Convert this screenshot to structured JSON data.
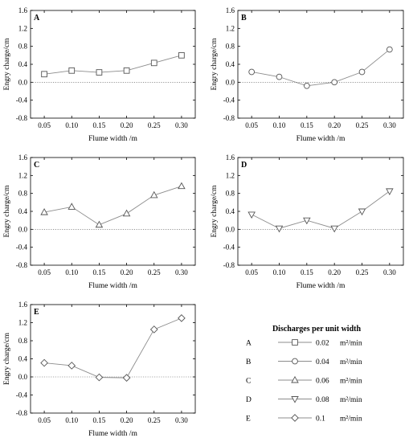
{
  "chart_data": [
    {
      "type": "line",
      "panel": "A",
      "x": [
        0.05,
        0.1,
        0.15,
        0.2,
        0.25,
        0.3
      ],
      "y": [
        0.18,
        0.26,
        0.22,
        0.26,
        0.43,
        0.6
      ],
      "marker": "square",
      "xlabel": "Flume width /m",
      "ylabel": "Engry charge/cm",
      "xticks": [
        "0.05",
        "0.10",
        "0.15",
        "0.20",
        "0.25",
        "0.30"
      ],
      "yticks": [
        "-0.8",
        "-0.4",
        "0.0",
        "0.4",
        "0.8",
        "1.2",
        "1.6"
      ],
      "ylim": [
        -0.8,
        1.6
      ],
      "zero_line": true
    },
    {
      "type": "line",
      "panel": "B",
      "x": [
        0.05,
        0.1,
        0.15,
        0.2,
        0.25,
        0.3
      ],
      "y": [
        0.23,
        0.12,
        -0.08,
        0.0,
        0.23,
        0.73
      ],
      "marker": "circle",
      "xlabel": "Flume width /m",
      "ylabel": "Engry charge/cm",
      "xticks": [
        "0.05",
        "0.10",
        "0.15",
        "0.20",
        "0.25",
        "0.30"
      ],
      "yticks": [
        "-0.8",
        "-0.4",
        "0.0",
        "0.4",
        "0.8",
        "1.2",
        "1.6"
      ],
      "ylim": [
        -0.8,
        1.6
      ],
      "zero_line": true
    },
    {
      "type": "line",
      "panel": "C",
      "x": [
        0.05,
        0.1,
        0.15,
        0.2,
        0.25,
        0.3
      ],
      "y": [
        0.38,
        0.5,
        0.1,
        0.35,
        0.76,
        0.96
      ],
      "marker": "triangle-up",
      "xlabel": "Flume width /m",
      "ylabel": "Engry charge/cm",
      "xticks": [
        "0.05",
        "0.10",
        "0.15",
        "0.20",
        "0.25",
        "0.30"
      ],
      "yticks": [
        "-0.8",
        "-0.4",
        "0.0",
        "0.4",
        "0.8",
        "1.2",
        "1.6"
      ],
      "ylim": [
        -0.8,
        1.6
      ],
      "zero_line": true
    },
    {
      "type": "line",
      "panel": "D",
      "x": [
        0.05,
        0.1,
        0.15,
        0.2,
        0.25,
        0.3
      ],
      "y": [
        0.33,
        0.02,
        0.2,
        0.02,
        0.4,
        0.85
      ],
      "marker": "triangle-down",
      "xlabel": "Flume width /m",
      "ylabel": "Engry charge/cm",
      "xticks": [
        "0.05",
        "0.10",
        "0.15",
        "0.20",
        "0.25",
        "0.30"
      ],
      "yticks": [
        "-0.8",
        "-0.4",
        "0.0",
        "0.4",
        "0.8",
        "1.2",
        "1.6"
      ],
      "ylim": [
        -0.8,
        1.6
      ],
      "zero_line": true
    },
    {
      "type": "line",
      "panel": "E",
      "x": [
        0.05,
        0.1,
        0.15,
        0.2,
        0.25,
        0.3
      ],
      "y": [
        0.31,
        0.25,
        -0.01,
        -0.02,
        1.05,
        1.3
      ],
      "marker": "diamond",
      "xlabel": "Flume width /m",
      "ylabel": "Engry charge/cm",
      "xticks": [
        "0.05",
        "0.10",
        "0.15",
        "0.20",
        "0.25",
        "0.30"
      ],
      "yticks": [
        "-0.8",
        "-0.4",
        "0.0",
        "0.4",
        "0.8",
        "1.2",
        "1.6"
      ],
      "ylim": [
        -0.8,
        1.6
      ],
      "zero_line": true
    }
  ],
  "legend": {
    "title": "Discharges per unit width",
    "entries": [
      {
        "letter": "A",
        "value": "0.02",
        "unit": "m²/min",
        "marker": "square"
      },
      {
        "letter": "B",
        "value": "0.04",
        "unit": "m²/min",
        "marker": "circle"
      },
      {
        "letter": "C",
        "value": "0.06",
        "unit": "m²/min",
        "marker": "triangle-up"
      },
      {
        "letter": "D",
        "value": "0.08",
        "unit": "m²/min",
        "marker": "triangle-down"
      },
      {
        "letter": "E",
        "value": "0.1",
        "unit": "m²/min",
        "marker": "diamond"
      }
    ]
  },
  "colors": {
    "line": "#8c8c8c",
    "marker_stroke": "#555555",
    "axis": "#000000",
    "zero_line": "#555555"
  }
}
